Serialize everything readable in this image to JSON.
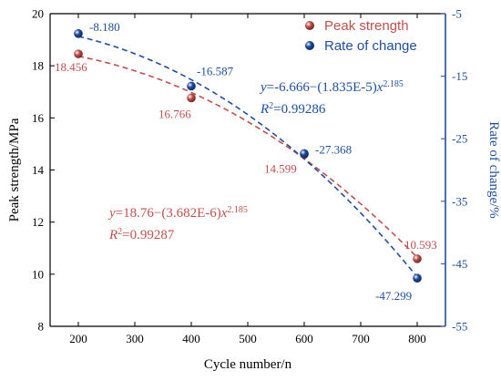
{
  "chart_data": {
    "type": "scatter",
    "xlabel": "Cycle number/n",
    "ylabel_left": "Peak strength/MPa",
    "ylabel_right": "Rate of change/%",
    "xlim": [
      150,
      850
    ],
    "xticks": [
      200,
      300,
      400,
      500,
      600,
      700,
      800
    ],
    "ylim_left": [
      8,
      20
    ],
    "yticks_left": [
      8,
      10,
      12,
      14,
      16,
      18,
      20
    ],
    "ylim_right": [
      -55,
      -5
    ],
    "yticks_right": [
      -5,
      -15,
      -25,
      -35,
      -45,
      -55
    ],
    "legend_position": "top-right",
    "grid": false,
    "series": [
      {
        "name": "Peak strength",
        "axis": "left",
        "color": "#c0504d",
        "x": [
          200,
          400,
          600,
          800
        ],
        "y": [
          18.456,
          16.766,
          14.599,
          10.593
        ],
        "labels": [
          "18.456",
          "16.766",
          "14.599",
          "10.593"
        ],
        "fit": {
          "a": 18.76,
          "b": 3.682e-06,
          "p": 2.185
        },
        "equation": {
          "prefix": "y",
          "body": "=18.76−(3.682E-6)",
          "var": "x",
          "exp": "2.185",
          "r2_label": "R",
          "r2_exp": "2",
          "r2_value": "=0.99287"
        }
      },
      {
        "name": "Rate of change",
        "axis": "right",
        "color": "#1f4e9e",
        "x": [
          200,
          400,
          600,
          800
        ],
        "y": [
          -8.18,
          -16.587,
          -27.368,
          -47.299
        ],
        "labels": [
          "-8.180",
          "-16.587",
          "-27.368",
          "-47.299"
        ],
        "fit": {
          "a": -6.666,
          "b": 1.835e-05,
          "p": 2.185
        },
        "equation": {
          "prefix": "y",
          "body": "=-6.666−(1.835E-5)",
          "var": "x",
          "exp": "2.185",
          "r2_label": "R",
          "r2_exp": "2",
          "r2_value": "=0.99286"
        }
      }
    ]
  }
}
